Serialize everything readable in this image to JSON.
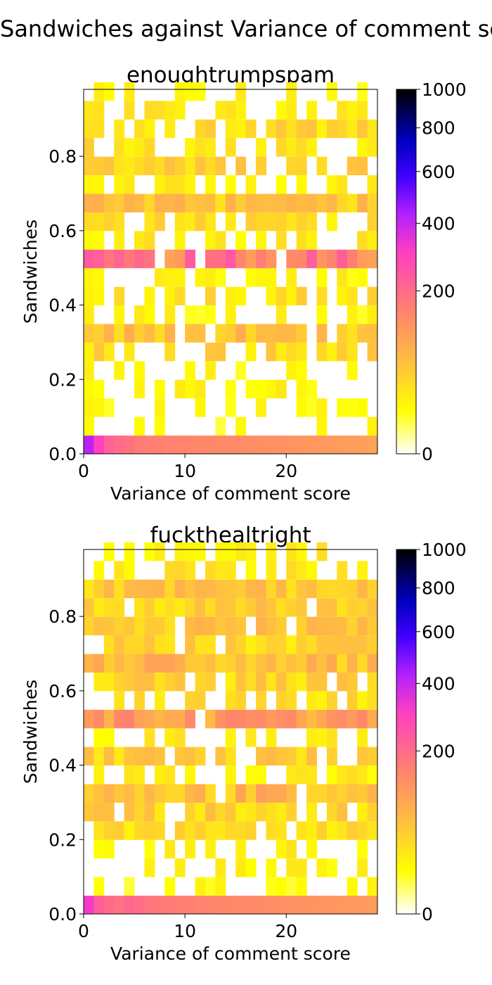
{
  "figure": {
    "suptitle": "Sandwiches against Variance of comment score"
  },
  "chart_data": [
    {
      "type": "heatmap",
      "title": "enoughtrumpspam",
      "xlabel": "Variance of comment score",
      "ylabel": "Sandwiches",
      "xlim": [
        0,
        29
      ],
      "ylim": [
        0,
        0.98
      ],
      "xticks": [
        "0",
        "10",
        "20"
      ],
      "yticks": [
        "0.0",
        "0.2",
        "0.4",
        "0.6",
        "0.8"
      ],
      "colorbar": {
        "colormap": "gnuplot2_r",
        "scale": "power (compressed toward zero)",
        "ticks": [
          "0",
          "200",
          "400",
          "600",
          "800",
          "1000"
        ],
        "range": [
          0,
          1000
        ]
      },
      "band_counts": [
        {
          "y": 0.0,
          "x_step": 1,
          "values": [
            420,
            300,
            220,
            200,
            185,
            170,
            165,
            160,
            155,
            150,
            150,
            145,
            145,
            140,
            140,
            138,
            135,
            132,
            130,
            128,
            125,
            122,
            120,
            118,
            115,
            112,
            110,
            108,
            100
          ]
        },
        {
          "y": 0.05,
          "note": "sparse single cells",
          "approx_count": 15
        },
        {
          "y": 0.1,
          "note": "sparse single cells",
          "approx_count": 15
        },
        {
          "y": 0.15,
          "note": "sparse single cells",
          "approx_count": 20
        },
        {
          "y": 0.2,
          "note": "sparse single cells",
          "approx_count": 20
        },
        {
          "y": 0.25,
          "note": "dense band",
          "approx_count": 40
        },
        {
          "y": 0.3,
          "note": "dense band",
          "approx_count": 60
        },
        {
          "y": 0.35,
          "note": "sparse",
          "approx_count": 20
        },
        {
          "y": 0.4,
          "note": "medium band",
          "approx_count": 35
        },
        {
          "y": 0.45,
          "note": "sparse",
          "approx_count": 20
        },
        {
          "y": 0.5,
          "note": "strong band",
          "approx_count": 180
        },
        {
          "y": 0.55,
          "note": "sparse",
          "approx_count": 25
        },
        {
          "y": 0.6,
          "note": "medium band",
          "approx_count": 35
        },
        {
          "y": 0.65,
          "note": "medium band",
          "approx_count": 60
        },
        {
          "y": 0.7,
          "note": "sparse",
          "approx_count": 25
        },
        {
          "y": 0.75,
          "note": "medium band",
          "approx_count": 45
        },
        {
          "y": 0.8,
          "note": "medium band",
          "approx_count": 35
        },
        {
          "y": 0.85,
          "note": "medium band",
          "approx_count": 40
        },
        {
          "y": 0.9,
          "note": "sparse",
          "approx_count": 25
        },
        {
          "y": 0.95,
          "note": "rare",
          "approx_count": 20
        }
      ]
    },
    {
      "type": "heatmap",
      "title": "fuckthealtright",
      "xlabel": "Variance of comment score",
      "ylabel": "Sandwiches",
      "xlim": [
        0,
        29
      ],
      "ylim": [
        0,
        0.98
      ],
      "xticks": [
        "0",
        "10",
        "20"
      ],
      "yticks": [
        "0.0",
        "0.2",
        "0.4",
        "0.6",
        "0.8"
      ],
      "colorbar": {
        "colormap": "gnuplot2_r",
        "scale": "power (compressed toward zero)",
        "ticks": [
          "0",
          "200",
          "400",
          "600",
          "800",
          "1000"
        ],
        "range": [
          0,
          1000
        ]
      },
      "band_counts": [
        {
          "y": 0.0,
          "x_step": 1,
          "values": [
            320,
            230,
            200,
            190,
            210,
            195,
            180,
            175,
            170,
            165,
            160,
            155,
            150,
            148,
            145,
            142,
            140,
            138,
            135,
            132,
            130,
            128,
            126,
            124,
            122,
            120,
            118,
            116,
            110
          ]
        },
        {
          "y": 0.05,
          "note": "rare",
          "approx_count": 15
        },
        {
          "y": 0.1,
          "note": "sparse",
          "approx_count": 20
        },
        {
          "y": 0.15,
          "note": "sparse",
          "approx_count": 25
        },
        {
          "y": 0.2,
          "note": "medium",
          "approx_count": 35
        },
        {
          "y": 0.25,
          "note": "medium band",
          "approx_count": 45
        },
        {
          "y": 0.3,
          "note": "dense band",
          "approx_count": 75
        },
        {
          "y": 0.35,
          "note": "sparse",
          "approx_count": 25
        },
        {
          "y": 0.4,
          "note": "medium band",
          "approx_count": 50
        },
        {
          "y": 0.45,
          "note": "sparse",
          "approx_count": 25
        },
        {
          "y": 0.5,
          "note": "strong band",
          "approx_count": 110
        },
        {
          "y": 0.55,
          "note": "medium",
          "approx_count": 35
        },
        {
          "y": 0.6,
          "note": "medium",
          "approx_count": 45
        },
        {
          "y": 0.65,
          "note": "dense band",
          "approx_count": 70
        },
        {
          "y": 0.7,
          "note": "medium",
          "approx_count": 45
        },
        {
          "y": 0.75,
          "note": "medium band",
          "approx_count": 55
        },
        {
          "y": 0.8,
          "note": "medium",
          "approx_count": 50
        },
        {
          "y": 0.85,
          "note": "medium",
          "approx_count": 55
        },
        {
          "y": 0.9,
          "note": "sparse",
          "approx_count": 30
        },
        {
          "y": 0.95,
          "note": "rare",
          "approx_count": 25
        }
      ]
    }
  ]
}
